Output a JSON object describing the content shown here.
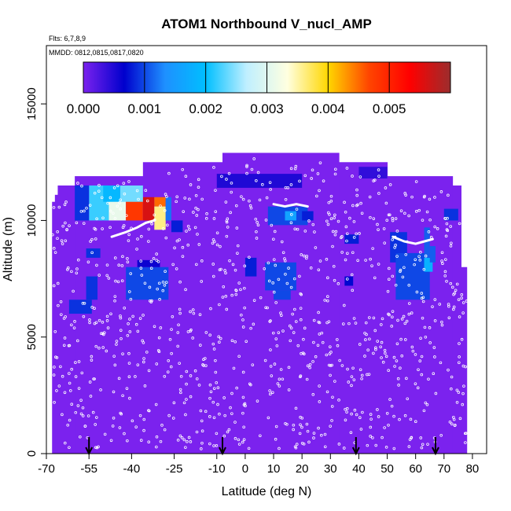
{
  "chart_data": {
    "type": "heatmap",
    "title": "ATOM1 Northbound V_nucl_AMP",
    "subtitle_flights": "Flts: 6,7,8,9",
    "subtitle_dates": "MMDD: 0812,0815,0817,0820",
    "xlabel": "Latitude (deg N)",
    "ylabel": "Altitude (m)",
    "xlim": [
      -70,
      85
    ],
    "ylim": [
      0,
      17500
    ],
    "x_ticks": [
      -70,
      -55,
      -40,
      -25,
      -10,
      0,
      10,
      20,
      30,
      40,
      50,
      60,
      70,
      80
    ],
    "x_tick_labels": [
      "-70",
      "-55",
      "-40",
      "-25",
      "-10",
      "0",
      "10",
      "20",
      "30",
      "40",
      "50",
      "60",
      "70",
      "80"
    ],
    "y_ticks": [
      0,
      5000,
      10000,
      15000
    ],
    "y_tick_labels": [
      "0",
      "5000",
      "10000",
      "15000"
    ],
    "grid": false,
    "colorbar": {
      "range": [
        0,
        0.006
      ],
      "ticks": [
        0,
        0.001,
        0.002,
        0.003,
        0.004,
        0.005
      ],
      "tick_labels": [
        "0.000",
        "0.001",
        "0.002",
        "0.003",
        "0.004",
        "0.005"
      ],
      "colors": [
        "#7b22ee",
        "#0000cd",
        "#1e90ff",
        "#00bfff",
        "#bfefff",
        "#ffffe0",
        "#ffd700",
        "#ff4500",
        "#ff0000",
        "#9b2d2d"
      ]
    },
    "background_value": 0.0,
    "coverage": [
      {
        "x0": -68,
        "x1": -67,
        "y0": 0,
        "y1": 10800
      },
      {
        "x0": -67,
        "x1": -66,
        "y0": 0,
        "y1": 11100
      },
      {
        "x0": -66,
        "x1": -60,
        "y0": 0,
        "y1": 11500
      },
      {
        "x0": -60,
        "x1": -36,
        "y0": 0,
        "y1": 11900
      },
      {
        "x0": -36,
        "x1": -8,
        "y0": 0,
        "y1": 12500
      },
      {
        "x0": -8,
        "x1": 33,
        "y0": 0,
        "y1": 12900
      },
      {
        "x0": 33,
        "x1": 50,
        "y0": 0,
        "y1": 12500
      },
      {
        "x0": 50,
        "x1": 73,
        "y0": 0,
        "y1": 11900
      },
      {
        "x0": 73,
        "x1": 76,
        "y0": 0,
        "y1": 11500
      },
      {
        "x0": 76,
        "x1": 78,
        "y0": 0,
        "y1": 8000
      }
    ],
    "cells": [
      {
        "x0": -55,
        "x1": -48,
        "y0": 10000,
        "y1": 11500,
        "v": 0.0022
      },
      {
        "x0": -48,
        "x1": -42,
        "y0": 10000,
        "y1": 11000,
        "v": 0.0031
      },
      {
        "x0": -42,
        "x1": -36,
        "y0": 10000,
        "y1": 11000,
        "v": 0.0048
      },
      {
        "x0": -36,
        "x1": -32,
        "y0": 10000,
        "y1": 11000,
        "v": 0.0056
      },
      {
        "x0": -32,
        "x1": -28,
        "y0": 10600,
        "y1": 11000,
        "v": 0.0045
      },
      {
        "x0": -32,
        "x1": -28,
        "y0": 9600,
        "y1": 10600,
        "v": 0.0036
      },
      {
        "x0": -28,
        "x1": -26,
        "y0": 10000,
        "y1": 11000,
        "v": 0.0012
      },
      {
        "x0": -60,
        "x1": -55,
        "y0": 10000,
        "y1": 11500,
        "v": 0.0009
      },
      {
        "x0": -26,
        "x1": -22,
        "y0": 9500,
        "y1": 10000,
        "v": 0.0008
      },
      {
        "x0": -56,
        "x1": -51,
        "y0": 8400,
        "y1": 8800,
        "v": 0.0009
      },
      {
        "x0": -42,
        "x1": -27,
        "y0": 6600,
        "y1": 8000,
        "v": 0.001
      },
      {
        "x0": -38,
        "x1": -30,
        "y0": 8000,
        "y1": 8300,
        "v": 0.0006
      },
      {
        "x0": -62,
        "x1": -54,
        "y0": 6000,
        "y1": 6600,
        "v": 0.0009
      },
      {
        "x0": -56,
        "x1": -52,
        "y0": 6600,
        "y1": 7600,
        "v": 0.0009
      },
      {
        "x0": -10,
        "x1": 20,
        "y0": 11400,
        "y1": 12000,
        "v": 0.0005
      },
      {
        "x0": 8,
        "x1": 22,
        "y0": 9800,
        "y1": 10600,
        "v": 0.001
      },
      {
        "x0": 14,
        "x1": 18,
        "y0": 10000,
        "y1": 10400,
        "v": 0.0016
      },
      {
        "x0": 7,
        "x1": 18,
        "y0": 7000,
        "y1": 8200,
        "v": 0.001
      },
      {
        "x0": 10,
        "x1": 16,
        "y0": 6600,
        "y1": 7000,
        "v": 0.001
      },
      {
        "x0": 0,
        "x1": 4,
        "y0": 7600,
        "y1": 8400,
        "v": 0.0008
      },
      {
        "x0": 20,
        "x1": 24,
        "y0": 10000,
        "y1": 10400,
        "v": 0.0008
      },
      {
        "x0": 35,
        "x1": 40,
        "y0": 9000,
        "y1": 9400,
        "v": 0.0008
      },
      {
        "x0": 35,
        "x1": 38,
        "y0": 7200,
        "y1": 7600,
        "v": 0.0007
      },
      {
        "x0": 40,
        "x1": 50,
        "y0": 11800,
        "y1": 12300,
        "v": 0.0004
      },
      {
        "x0": 51,
        "x1": 57,
        "y0": 8200,
        "y1": 9500,
        "v": 0.0009
      },
      {
        "x0": 53,
        "x1": 65,
        "y0": 6600,
        "y1": 8600,
        "v": 0.001
      },
      {
        "x0": 63,
        "x1": 66,
        "y0": 7800,
        "y1": 8400,
        "v": 0.0018
      },
      {
        "x0": 63,
        "x1": 65,
        "y0": 8400,
        "y1": 9700,
        "v": 0.0011
      },
      {
        "x0": 65,
        "x1": 67,
        "y0": 8200,
        "y1": 8900,
        "v": 0.0011
      },
      {
        "x0": 70,
        "x1": 75,
        "y0": 10000,
        "y1": 10500,
        "v": 0.0009
      },
      {
        "x0": -50,
        "x1": -44,
        "y0": 10800,
        "y1": 11500,
        "v": 0.0019
      },
      {
        "x0": -44,
        "x1": -36,
        "y0": 10800,
        "y1": 11500,
        "v": 0.0024
      }
    ],
    "flight_track_segments": [
      [
        [
          -47,
          9300
        ],
        [
          -42,
          9500
        ],
        [
          -38,
          9700
        ],
        [
          -35,
          9900
        ],
        [
          -32,
          10000
        ]
      ],
      [
        [
          10,
          10700
        ],
        [
          14,
          10600
        ],
        [
          18,
          10700
        ],
        [
          22,
          10600
        ]
      ],
      [
        [
          52,
          9300
        ],
        [
          56,
          9100
        ],
        [
          60,
          9000
        ],
        [
          63,
          9100
        ],
        [
          66,
          9200
        ]
      ]
    ],
    "arrows_at_latitude": [
      -55,
      -8,
      39,
      67
    ]
  }
}
